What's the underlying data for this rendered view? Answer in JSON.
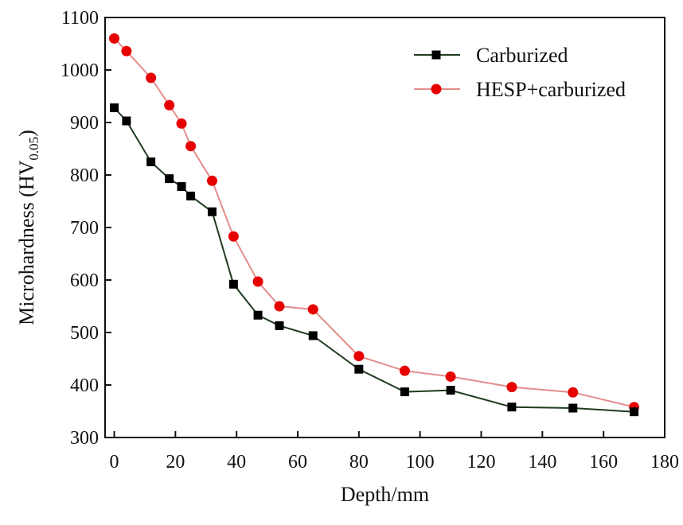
{
  "chart_data": {
    "type": "line",
    "title": "",
    "xlabel": "Depth/mm",
    "ylabel_main": "Microhardness (HV",
    "ylabel_sub": "0.05",
    "ylabel_close": ")",
    "xlim": [
      -3,
      180
    ],
    "ylim": [
      300,
      1100
    ],
    "xticks": [
      "0",
      "20",
      "40",
      "60",
      "80",
      "100",
      "120",
      "140",
      "160",
      "180"
    ],
    "yticks": [
      "300",
      "400",
      "500",
      "600",
      "700",
      "800",
      "900",
      "1000",
      "1100"
    ],
    "legend_position": "top-right",
    "grid": false,
    "series": [
      {
        "name": "Carburized",
        "line_color": "#1f3b1f",
        "marker": "square",
        "marker_color": "#000000",
        "x": [
          0,
          4,
          12,
          18,
          22,
          25,
          32,
          39,
          47,
          54,
          65,
          80,
          95,
          110,
          130,
          150,
          170
        ],
        "y": [
          928,
          903,
          825,
          793,
          778,
          760,
          730,
          592,
          533,
          513,
          494,
          430,
          387,
          390,
          358,
          356,
          349
        ]
      },
      {
        "name": "HESP+carburized",
        "line_color": "#e58c8c",
        "marker": "circle",
        "marker_color": "#e60000",
        "x": [
          0,
          4,
          12,
          18,
          22,
          25,
          32,
          39,
          47,
          54,
          65,
          80,
          95,
          110,
          130,
          150,
          170
        ],
        "y": [
          1060,
          1036,
          985,
          933,
          898,
          855,
          789,
          683,
          597,
          550,
          544,
          455,
          427,
          416,
          396,
          386,
          358
        ]
      }
    ]
  }
}
